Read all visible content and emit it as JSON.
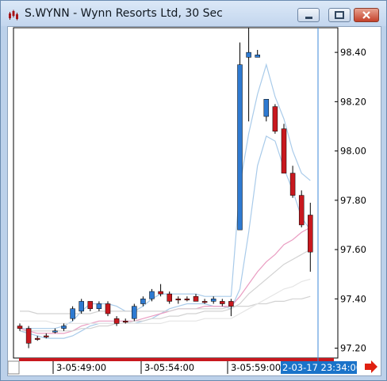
{
  "window": {
    "title": "S.WYNN - Wynn Resorts Ltd, 30 Sec",
    "icon": "chart-app-icon",
    "controls": [
      "minimize-icon",
      "maximize-icon",
      "close-icon"
    ]
  },
  "chart_data": {
    "type": "candlestick",
    "symbol": "S.WYNN",
    "interval": "30 Sec",
    "ylim": [
      97.16,
      98.5
    ],
    "y_ticks": [
      "98.40",
      "98.20",
      "98.00",
      "97.80",
      "97.60",
      "97.40",
      "97.20"
    ],
    "x_ticks": [
      "3-05:49:00",
      "3-05:54:00",
      "3-05:59:00"
    ],
    "cursor_time": "2-03-17 23:34:00",
    "candles": [
      {
        "o": 97.29,
        "h": 97.3,
        "l": 97.27,
        "c": 97.28,
        "dir": "down"
      },
      {
        "o": 97.28,
        "h": 97.29,
        "l": 97.2,
        "c": 97.22,
        "dir": "down"
      },
      {
        "o": 97.24,
        "h": 97.25,
        "l": 97.23,
        "c": 97.24,
        "dir": "down"
      },
      {
        "o": 97.25,
        "h": 97.26,
        "l": 97.24,
        "c": 97.25,
        "dir": "down"
      },
      {
        "o": 97.27,
        "h": 97.28,
        "l": 97.26,
        "c": 97.27,
        "dir": "up"
      },
      {
        "o": 97.28,
        "h": 97.3,
        "l": 97.27,
        "c": 97.29,
        "dir": "up"
      },
      {
        "o": 97.32,
        "h": 97.37,
        "l": 97.31,
        "c": 97.36,
        "dir": "up"
      },
      {
        "o": 97.35,
        "h": 97.4,
        "l": 97.34,
        "c": 97.39,
        "dir": "up"
      },
      {
        "o": 97.39,
        "h": 97.39,
        "l": 97.35,
        "c": 97.36,
        "dir": "down"
      },
      {
        "o": 97.36,
        "h": 97.39,
        "l": 97.35,
        "c": 97.38,
        "dir": "up"
      },
      {
        "o": 97.38,
        "h": 97.39,
        "l": 97.33,
        "c": 97.34,
        "dir": "down"
      },
      {
        "o": 97.32,
        "h": 97.33,
        "l": 97.29,
        "c": 97.3,
        "dir": "down"
      },
      {
        "o": 97.31,
        "h": 97.32,
        "l": 97.3,
        "c": 97.31,
        "dir": "down"
      },
      {
        "o": 97.32,
        "h": 97.38,
        "l": 97.31,
        "c": 97.37,
        "dir": "up"
      },
      {
        "o": 97.38,
        "h": 97.41,
        "l": 97.37,
        "c": 97.4,
        "dir": "up"
      },
      {
        "o": 97.4,
        "h": 97.44,
        "l": 97.39,
        "c": 97.43,
        "dir": "up"
      },
      {
        "o": 97.43,
        "h": 97.46,
        "l": 97.41,
        "c": 97.42,
        "dir": "down"
      },
      {
        "o": 97.42,
        "h": 97.43,
        "l": 97.38,
        "c": 97.39,
        "dir": "down"
      },
      {
        "o": 97.4,
        "h": 97.41,
        "l": 97.38,
        "c": 97.4,
        "dir": "down"
      },
      {
        "o": 97.4,
        "h": 97.41,
        "l": 97.39,
        "c": 97.4,
        "dir": "down"
      },
      {
        "o": 97.41,
        "h": 97.42,
        "l": 97.39,
        "c": 97.39,
        "dir": "down"
      },
      {
        "o": 97.39,
        "h": 97.4,
        "l": 97.38,
        "c": 97.39,
        "dir": "down"
      },
      {
        "o": 97.4,
        "h": 97.41,
        "l": 97.38,
        "c": 97.39,
        "dir": "up"
      },
      {
        "o": 97.39,
        "h": 97.4,
        "l": 97.37,
        "c": 97.38,
        "dir": "down"
      },
      {
        "o": 97.39,
        "h": 97.4,
        "l": 97.33,
        "c": 97.37,
        "dir": "down"
      },
      {
        "o": 97.68,
        "h": 98.44,
        "l": 97.68,
        "c": 98.35,
        "dir": "up"
      },
      {
        "o": 98.38,
        "h": 98.5,
        "l": 98.12,
        "c": 98.4,
        "dir": "up"
      },
      {
        "o": 98.38,
        "h": 98.41,
        "l": 98.38,
        "c": 98.39,
        "dir": "up"
      },
      {
        "o": 98.14,
        "h": 98.21,
        "l": 98.12,
        "c": 98.21,
        "dir": "up"
      },
      {
        "o": 98.18,
        "h": 98.19,
        "l": 98.07,
        "c": 98.08,
        "dir": "down"
      },
      {
        "o": 98.09,
        "h": 98.11,
        "l": 97.91,
        "c": 97.91,
        "dir": "down"
      },
      {
        "o": 97.91,
        "h": 97.94,
        "l": 97.81,
        "c": 97.82,
        "dir": "down"
      },
      {
        "o": 97.82,
        "h": 97.84,
        "l": 97.69,
        "c": 97.7,
        "dir": "down"
      },
      {
        "o": 97.74,
        "h": 97.79,
        "l": 97.51,
        "c": 97.59,
        "dir": "down"
      }
    ],
    "series": [
      {
        "id": "upper-band",
        "color": "#a9cbea",
        "values": [
          97.28,
          97.28,
          97.28,
          97.28,
          97.28,
          97.29,
          97.31,
          97.35,
          97.38,
          97.38,
          97.38,
          97.37,
          97.35,
          97.35,
          97.37,
          97.4,
          97.42,
          97.42,
          97.42,
          97.42,
          97.42,
          97.41,
          97.41,
          97.41,
          97.41,
          97.86,
          98.07,
          98.23,
          98.35,
          98.22,
          98.13,
          98.0,
          97.91,
          97.88
        ]
      },
      {
        "id": "lower-band",
        "color": "#a9cbea",
        "values": [
          97.27,
          97.26,
          97.25,
          97.24,
          97.24,
          97.24,
          97.25,
          97.27,
          97.29,
          97.3,
          97.3,
          97.3,
          97.3,
          97.3,
          97.31,
          97.32,
          97.34,
          97.36,
          97.37,
          97.38,
          97.38,
          97.38,
          97.37,
          97.37,
          97.36,
          97.44,
          97.67,
          97.94,
          98.06,
          98.04,
          97.93,
          97.84,
          97.73,
          97.68
        ]
      },
      {
        "id": "ma-fast",
        "color": "#ea9dc2",
        "values": [
          97.28,
          97.27,
          97.26,
          97.26,
          97.26,
          97.26,
          97.27,
          97.29,
          97.3,
          97.31,
          97.31,
          97.31,
          97.31,
          97.31,
          97.32,
          97.33,
          97.34,
          97.35,
          97.36,
          97.36,
          97.36,
          97.37,
          97.37,
          97.37,
          97.37,
          97.41,
          97.46,
          97.51,
          97.55,
          97.58,
          97.62,
          97.64,
          97.67,
          97.69
        ]
      },
      {
        "id": "ma-medium",
        "color": "#d2d2d2",
        "values": [
          97.27,
          97.27,
          97.27,
          97.27,
          97.27,
          97.27,
          97.27,
          97.28,
          97.28,
          97.29,
          97.29,
          97.3,
          97.3,
          97.31,
          97.31,
          97.32,
          97.32,
          97.33,
          97.33,
          97.34,
          97.34,
          97.35,
          97.35,
          97.35,
          97.36,
          97.38,
          97.42,
          97.45,
          97.48,
          97.51,
          97.54,
          97.56,
          97.58,
          97.6
        ]
      },
      {
        "id": "ma-slow",
        "color": "#d2d2d2",
        "values": [
          97.35,
          97.35,
          97.34,
          97.34,
          97.34,
          97.34,
          97.34,
          97.34,
          97.34,
          97.35,
          97.35,
          97.35,
          97.35,
          97.35,
          97.35,
          97.35,
          97.35,
          97.35,
          97.36,
          97.36,
          97.36,
          97.36,
          97.36,
          97.36,
          97.37,
          97.37,
          97.37,
          97.38,
          97.38,
          97.39,
          97.39,
          97.4,
          97.4,
          97.41
        ]
      },
      {
        "id": "ma-long",
        "color": "#e5e5e5",
        "values": [
          97.31,
          97.31,
          97.31,
          97.31,
          97.3,
          97.3,
          97.3,
          97.3,
          97.3,
          97.3,
          97.3,
          97.3,
          97.3,
          97.3,
          97.3,
          97.3,
          97.3,
          97.31,
          97.31,
          97.31,
          97.31,
          97.32,
          97.32,
          97.32,
          97.32,
          97.34,
          97.36,
          97.38,
          97.4,
          97.42,
          97.44,
          97.45,
          97.47,
          97.48
        ]
      }
    ],
    "colors": {
      "up": "#2e7ad1",
      "down": "#c8181e",
      "cursor": "#3c8ad8",
      "axis_bar": "#c8181e",
      "cursor_label_bg": "#1a73c9"
    }
  }
}
